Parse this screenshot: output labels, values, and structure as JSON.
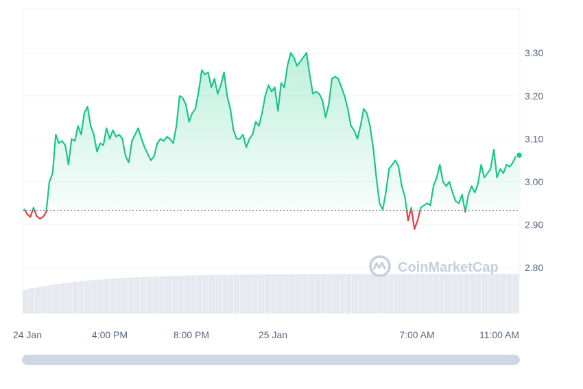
{
  "chart_data": {
    "type": "line",
    "title": "",
    "xlabel": "",
    "ylabel": "",
    "x_ticks": [
      "24 Jan",
      "4:00 PM",
      "8:00 PM",
      "25 Jan",
      "7:00 AM",
      "11:00 AM"
    ],
    "y_ticks": [
      "2.80",
      "2.90",
      "3.00",
      "3.10",
      "3.20",
      "3.30"
    ],
    "ylim": [
      2.7,
      3.4
    ],
    "baseline": 2.935,
    "grid": true,
    "colors": {
      "up": "#16c784",
      "down": "#ea3943",
      "volume": "#e6e9ef"
    },
    "series": [
      {
        "values": [
          2.937,
          2.925,
          2.918,
          2.94,
          2.92,
          2.914,
          2.918,
          2.93,
          3.0,
          3.02,
          3.11,
          3.09,
          3.095,
          3.085,
          3.04,
          3.1,
          3.095,
          3.13,
          3.11,
          3.16,
          3.175,
          3.13,
          3.11,
          3.07,
          3.09,
          3.085,
          3.125,
          3.1,
          3.12,
          3.105,
          3.11,
          3.1,
          3.06,
          3.045,
          3.095,
          3.11,
          3.125,
          3.1,
          3.08,
          3.065,
          3.05,
          3.06,
          3.09,
          3.1,
          3.095,
          3.105,
          3.1,
          3.09,
          3.13,
          3.2,
          3.195,
          3.18,
          3.14,
          3.16,
          3.17,
          3.21,
          3.26,
          3.25,
          3.255,
          3.22,
          3.24,
          3.205,
          3.225,
          3.255,
          3.2,
          3.17,
          3.12,
          3.1,
          3.1,
          3.11,
          3.08,
          3.1,
          3.11,
          3.14,
          3.13,
          3.16,
          3.2,
          3.225,
          3.21,
          3.22,
          3.165,
          3.23,
          3.22,
          3.27,
          3.3,
          3.29,
          3.27,
          3.28,
          3.29,
          3.3,
          3.25,
          3.205,
          3.21,
          3.205,
          3.19,
          3.15,
          3.18,
          3.24,
          3.245,
          3.24,
          3.22,
          3.2,
          3.17,
          3.13,
          3.12,
          3.1,
          3.13,
          3.17,
          3.16,
          3.13,
          3.08,
          3.01,
          2.95,
          2.935,
          2.975,
          3.03,
          3.04,
          3.05,
          3.035,
          2.99,
          2.965,
          2.91,
          2.94,
          2.89,
          2.91,
          2.94,
          2.945,
          2.95,
          2.945,
          2.99,
          3.01,
          3.04,
          3.0,
          2.99,
          3.0,
          2.975,
          2.955,
          2.95,
          2.97,
          2.93,
          2.97,
          2.99,
          2.975,
          2.995,
          3.04,
          3.01,
          3.02,
          3.03,
          3.075,
          3.01,
          3.03,
          3.02,
          3.04,
          3.035,
          3.045,
          3.06,
          3.062
        ]
      }
    ],
    "watermark": "CoinMarketCap"
  }
}
